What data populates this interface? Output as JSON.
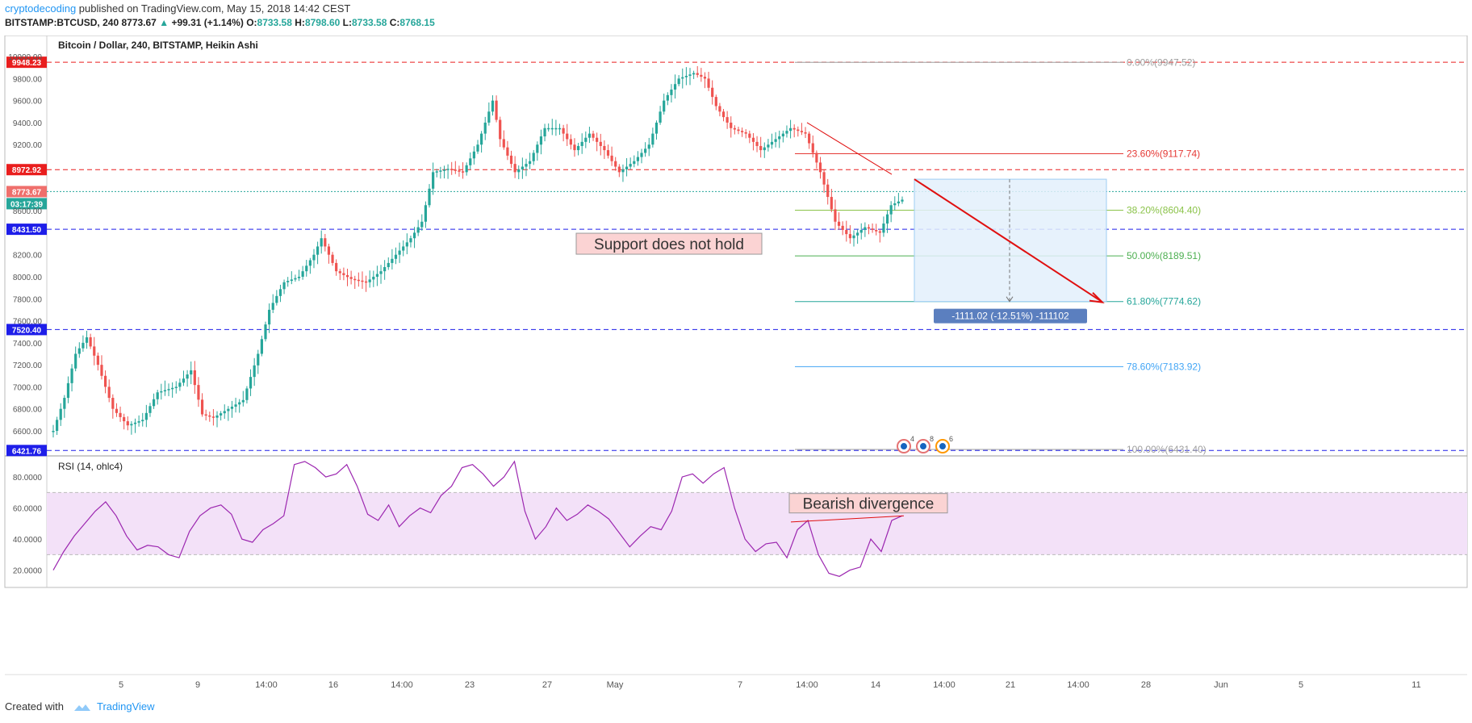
{
  "header": {
    "author": "cryptodecoding",
    "published": "published on TradingView.com, May 15, 2018 14:42 CEST",
    "symbol": "BITSTAMP:BTCUSD, 240",
    "last": "8773.67",
    "change": "+99.31 (+1.14%)",
    "o_label": "O:",
    "o": "8733.58",
    "h_label": "H:",
    "h": "8798.60",
    "l_label": "L:",
    "l": "8733.58",
    "c_label": "C:",
    "c": "8768.15"
  },
  "footer": {
    "created": "Created with",
    "brand": "TradingView"
  },
  "colors": {
    "up": "#26a69a",
    "down": "#ef5350",
    "rsi": "#9c27b0",
    "red_line": "#e91e1e",
    "blue_line": "#1e1ee9"
  },
  "chart_data": [
    {
      "type": "candlestick",
      "title": "Bitcoin / Dollar, 240, BITSTAMP, Heikin Ashi",
      "ylim": [
        6380,
        10030
      ],
      "yticks": [
        "10000.00",
        "9800.00",
        "9600.00",
        "9400.00",
        "9200.00",
        "8600.00",
        "8200.00",
        "8000.00",
        "7800.00",
        "7600.00",
        "7400.00",
        "7200.00",
        "7000.00",
        "6800.00",
        "6600.00"
      ],
      "xticks": [
        "5",
        "9",
        "14:00",
        "16",
        "14:00",
        "23",
        "27",
        "May",
        "7",
        "14:00",
        "14",
        "14:00",
        "21",
        "14:00",
        "28",
        "Jun",
        "5",
        "11"
      ],
      "price_path": [
        [
          0,
          6600
        ],
        [
          3,
          6900
        ],
        [
          6,
          7300
        ],
        [
          9,
          7450
        ],
        [
          12,
          7200
        ],
        [
          16,
          6800
        ],
        [
          20,
          6650
        ],
        [
          24,
          6700
        ],
        [
          28,
          6950
        ],
        [
          33,
          7000
        ],
        [
          37,
          7150
        ],
        [
          40,
          6750
        ],
        [
          43,
          6720
        ],
        [
          47,
          6800
        ],
        [
          51,
          6880
        ],
        [
          55,
          7300
        ],
        [
          58,
          7700
        ],
        [
          62,
          7950
        ],
        [
          66,
          8000
        ],
        [
          70,
          8200
        ],
        [
          72,
          8350
        ],
        [
          76,
          8050
        ],
        [
          80,
          7980
        ],
        [
          84,
          7950
        ],
        [
          88,
          8050
        ],
        [
          92,
          8200
        ],
        [
          96,
          8350
        ],
        [
          99,
          8500
        ],
        [
          102,
          8950
        ],
        [
          106,
          8980
        ],
        [
          110,
          8950
        ],
        [
          114,
          9200
        ],
        [
          118,
          9600
        ],
        [
          120,
          9250
        ],
        [
          124,
          8950
        ],
        [
          128,
          9050
        ],
        [
          132,
          9350
        ],
        [
          136,
          9350
        ],
        [
          140,
          9150
        ],
        [
          144,
          9300
        ],
        [
          148,
          9150
        ],
        [
          152,
          8950
        ],
        [
          156,
          9050
        ],
        [
          160,
          9200
        ],
        [
          164,
          9600
        ],
        [
          168,
          9800
        ],
        [
          172,
          9850
        ],
        [
          175,
          9800
        ],
        [
          178,
          9550
        ],
        [
          182,
          9350
        ],
        [
          186,
          9300
        ],
        [
          190,
          9150
        ],
        [
          194,
          9250
        ],
        [
          198,
          9350
        ],
        [
          202,
          9300
        ],
        [
          206,
          8950
        ],
        [
          210,
          8500
        ],
        [
          214,
          8350
        ],
        [
          218,
          8450
        ],
        [
          222,
          8400
        ],
        [
          225,
          8650
        ],
        [
          228,
          8700
        ]
      ],
      "h_levels": [
        {
          "label": "9948.23",
          "value": 9948.23,
          "color": "red"
        },
        {
          "label": "8972.92",
          "value": 8972.92,
          "color": "red"
        },
        {
          "label": "8431.50",
          "value": 8431.5,
          "color": "blue"
        },
        {
          "label": "7520.40",
          "value": 7520.4,
          "color": "blue"
        },
        {
          "label": "6421.76",
          "value": 6421.76,
          "color": "blue"
        }
      ],
      "last_price": {
        "label": "8773.67",
        "countdown": "03:17:39",
        "value": 8773.67
      },
      "fib": [
        {
          "label": "0.00%(9947.52)",
          "value": 9947.52,
          "color": "#9e9e9e"
        },
        {
          "label": "23.60%(9117.74)",
          "value": 9117.74,
          "color": "#e53935"
        },
        {
          "label": "38.20%(8604.40)",
          "value": 8604.4,
          "color": "#8bc34a"
        },
        {
          "label": "50.00%(8189.51)",
          "value": 8189.51,
          "color": "#4caf50"
        },
        {
          "label": "61.80%(7774.62)",
          "value": 7774.62,
          "color": "#26a69a"
        },
        {
          "label": "78.60%(7183.92)",
          "value": 7183.92,
          "color": "#42a5f5"
        },
        {
          "label": "100.00%(6431.40)",
          "value": 6431.4,
          "color": "#9e9e9e"
        }
      ],
      "annotations": {
        "support": "Support does not hold",
        "measure": "-1111.02 (-12.51%) -111102",
        "events": [
          "4",
          "8",
          "6"
        ]
      }
    },
    {
      "type": "line",
      "title": "RSI (14, ohlc4)",
      "ylim": [
        12,
        92
      ],
      "band": [
        30,
        70
      ],
      "yticks": [
        "80.0000",
        "60.0000",
        "40.0000",
        "20.0000"
      ],
      "values": [
        20,
        32,
        42,
        50,
        58,
        64,
        55,
        42,
        33,
        36,
        35,
        30,
        28,
        45,
        55,
        60,
        62,
        56,
        40,
        38,
        46,
        50,
        55,
        88,
        90,
        86,
        80,
        82,
        88,
        74,
        56,
        52,
        62,
        48,
        55,
        60,
        57,
        68,
        74,
        86,
        88,
        82,
        74,
        80,
        90,
        58,
        40,
        48,
        60,
        52,
        56,
        62,
        58,
        53,
        44,
        35,
        42,
        48,
        46,
        58,
        80,
        82,
        76,
        82,
        86,
        60,
        40,
        32,
        37,
        38,
        28,
        46,
        52,
        30,
        18,
        16,
        20,
        22,
        40,
        32,
        52,
        55
      ],
      "annotation": "Bearish divergence"
    }
  ]
}
